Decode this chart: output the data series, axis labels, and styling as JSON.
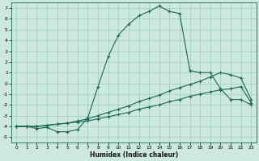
{
  "xlabel": "Humidex (Indice chaleur)",
  "background_color": "#cce8df",
  "grid_color": "#99ccbb",
  "line_color": "#1a6655",
  "xlim": [
    -0.5,
    23.5
  ],
  "ylim": [
    -5.5,
    7.5
  ],
  "xticks": [
    0,
    1,
    2,
    3,
    4,
    5,
    6,
    7,
    8,
    9,
    10,
    11,
    12,
    13,
    14,
    15,
    16,
    17,
    18,
    19,
    20,
    21,
    22,
    23
  ],
  "yticks": [
    -5,
    -4,
    -3,
    -2,
    -1,
    0,
    1,
    2,
    3,
    4,
    5,
    6,
    7
  ],
  "series1_x": [
    0,
    1,
    2,
    3,
    4,
    5,
    6,
    7,
    8,
    9,
    10,
    11,
    12,
    13,
    14,
    15,
    16,
    17,
    18,
    19,
    20,
    21,
    22,
    23
  ],
  "series1_y": [
    -4.0,
    -4.0,
    -4.2,
    -4.1,
    -4.5,
    -4.5,
    -4.3,
    -3.2,
    -0.3,
    2.5,
    4.5,
    5.5,
    6.3,
    6.7,
    7.2,
    6.7,
    6.5,
    1.2,
    1.0,
    1.0,
    -0.5,
    -1.5,
    -1.5,
    -2.0
  ],
  "series2_x": [
    0,
    1,
    2,
    3,
    4,
    5,
    6,
    7,
    8,
    9,
    10,
    11,
    12,
    13,
    14,
    15,
    16,
    17,
    18,
    19,
    20,
    21,
    22,
    23
  ],
  "series2_y": [
    -4.0,
    -4.0,
    -4.0,
    -3.9,
    -3.8,
    -3.7,
    -3.5,
    -3.3,
    -3.0,
    -2.7,
    -2.4,
    -2.1,
    -1.7,
    -1.4,
    -1.1,
    -0.7,
    -0.4,
    -0.1,
    0.2,
    0.6,
    1.0,
    0.8,
    0.5,
    -1.5
  ],
  "series3_x": [
    0,
    1,
    2,
    3,
    4,
    5,
    6,
    7,
    8,
    9,
    10,
    11,
    12,
    13,
    14,
    15,
    16,
    17,
    18,
    19,
    20,
    21,
    22,
    23
  ],
  "series3_y": [
    -4.0,
    -4.0,
    -4.0,
    -3.9,
    -3.8,
    -3.7,
    -3.6,
    -3.5,
    -3.3,
    -3.1,
    -2.9,
    -2.7,
    -2.4,
    -2.2,
    -2.0,
    -1.7,
    -1.5,
    -1.2,
    -1.0,
    -0.8,
    -0.6,
    -0.5,
    -0.3,
    -1.8
  ]
}
